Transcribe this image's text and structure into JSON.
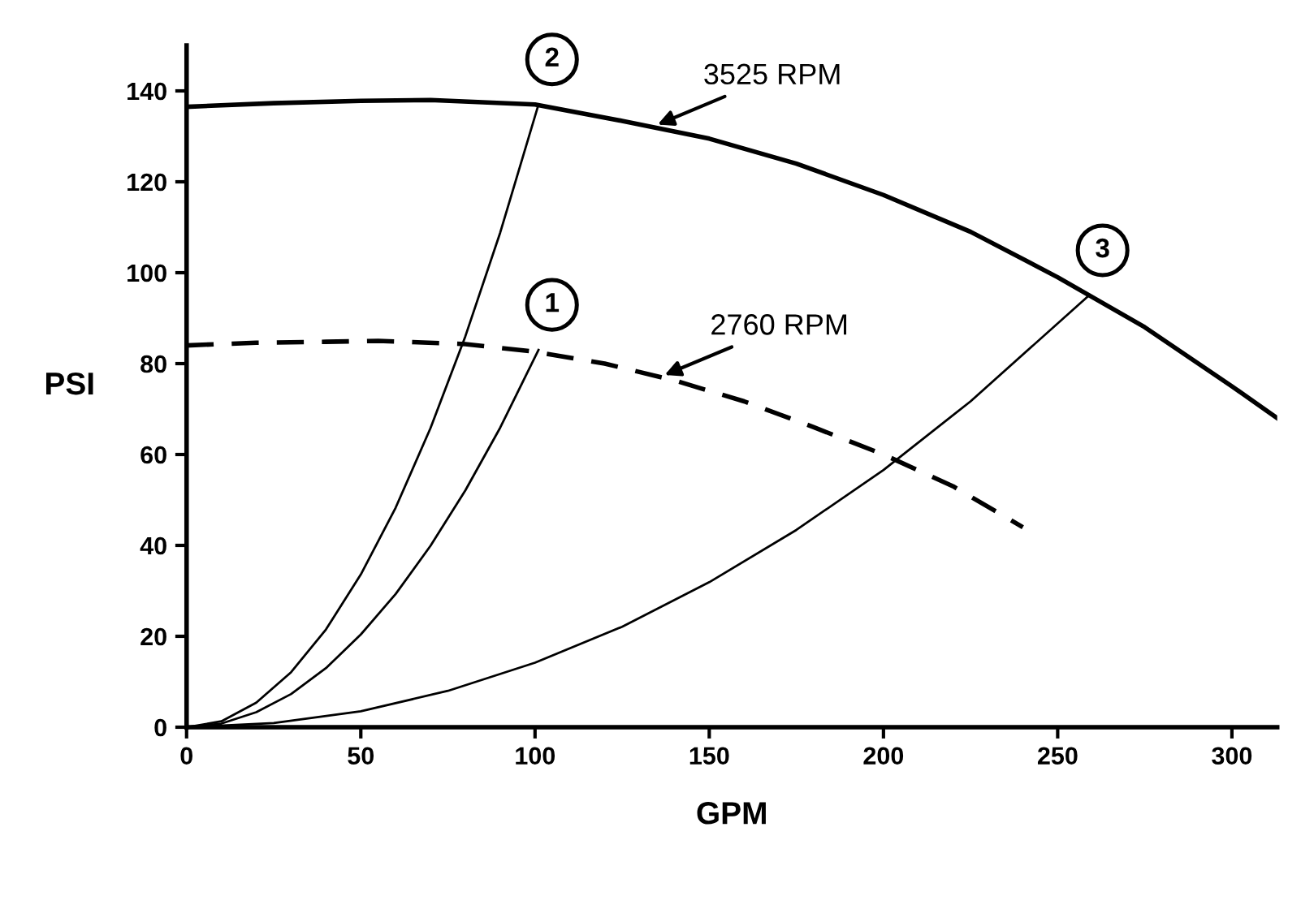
{
  "chart_data": {
    "type": "line",
    "xlabel": "GPM",
    "ylabel": "PSI",
    "xlim": [
      0,
      313
    ],
    "ylim": [
      0,
      150
    ],
    "xticks": [
      0,
      50,
      100,
      150,
      200,
      250,
      300
    ],
    "yticks": [
      0,
      20,
      40,
      60,
      80,
      100,
      120,
      140
    ],
    "grid": false,
    "legend": false,
    "marker": "none",
    "series": [
      {
        "color": "#000000",
        "line_style": "solid",
        "x": [
          0,
          25,
          50,
          70,
          100,
          125,
          150,
          175,
          200,
          225,
          250,
          275,
          300,
          313
        ],
        "values": [
          136.5,
          137.3,
          137.8,
          138,
          137,
          133.4,
          129.5,
          124,
          117.1,
          109,
          99,
          88,
          75,
          68
        ]
      },
      {
        "color": "#000000",
        "line_style": "dashed",
        "x": [
          0,
          20,
          40,
          55,
          80,
          100,
          120,
          140,
          160,
          180,
          200,
          220,
          240
        ],
        "values": [
          84,
          84.6,
          84.8,
          85,
          84.3,
          82.6,
          80,
          76.3,
          71.7,
          66,
          60,
          53,
          44
        ]
      },
      {
        "color": "#000000",
        "line_style": "solid",
        "x": [
          0,
          10,
          20,
          30,
          40,
          50,
          60,
          70,
          80,
          90,
          101
        ],
        "values": [
          0,
          1.3,
          5.4,
          12.1,
          21.5,
          33.6,
          48.3,
          65.8,
          86,
          108.8,
          137
        ]
      },
      {
        "color": "#000000",
        "line_style": "solid",
        "x": [
          0,
          10,
          20,
          30,
          40,
          50,
          60,
          70,
          80,
          90,
          101
        ],
        "values": [
          0,
          0.8,
          3.3,
          7.3,
          13,
          20.4,
          29.3,
          39.9,
          52.1,
          65.9,
          83
        ]
      },
      {
        "color": "#000000",
        "line_style": "solid",
        "x": [
          0,
          25,
          50,
          75,
          100,
          125,
          150,
          175,
          200,
          225,
          259
        ],
        "values": [
          0,
          0.9,
          3.5,
          8,
          14.2,
          22.1,
          31.9,
          43.4,
          56.6,
          71.7,
          95
        ]
      }
    ],
    "annotations": [
      {
        "text": "1",
        "x": 101,
        "y": 83
      },
      {
        "text": "2",
        "x": 101,
        "y": 137
      },
      {
        "text": "3",
        "x": 259,
        "y": 95
      },
      {
        "text": "3525 RPM",
        "x": 134,
        "y": 132.2
      },
      {
        "text": "2760 RPM",
        "x": 136,
        "y": 77.1
      }
    ]
  }
}
